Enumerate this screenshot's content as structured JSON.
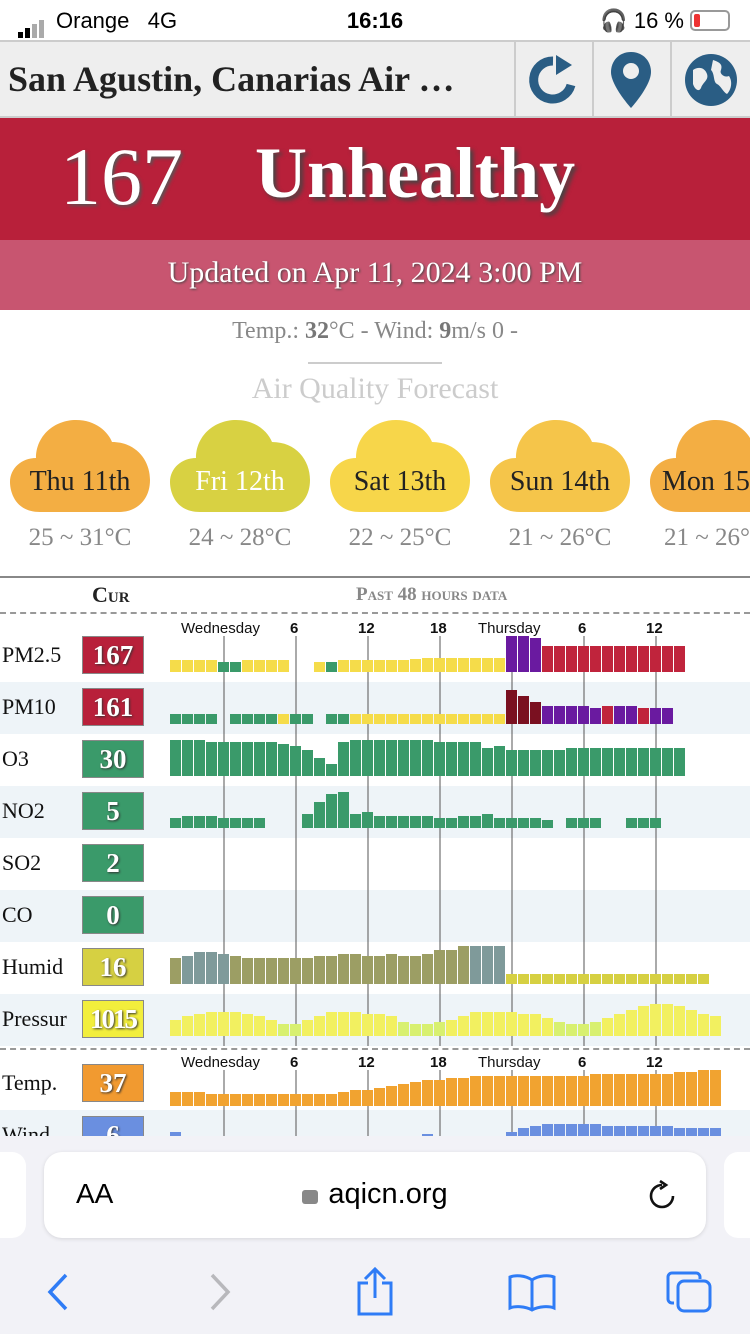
{
  "status_bar": {
    "carrier": "Orange",
    "network": "4G",
    "time": "16:16",
    "battery": "16 %"
  },
  "header": {
    "title": "San Agustin, Canarias Air …",
    "icons": [
      "refresh-icon",
      "location-pin-icon",
      "globe-icon"
    ]
  },
  "aqi": {
    "value": "167",
    "level": "Unhealthy",
    "updated": "Updated on Apr 11, 2024 3:00 PM",
    "color": "#b8203a"
  },
  "weather": {
    "temp_label": "Temp.:",
    "temp_value": "32",
    "temp_unit": "°C",
    "sep": " - ",
    "wind_label": "Wind:",
    "wind_value": "9",
    "wind_unit": "m/s",
    "wind_dir": "0 -"
  },
  "forecast": {
    "title": "Air Quality Forecast",
    "days": [
      {
        "day": "Thu 11th",
        "range": "25 ~ 31°C",
        "color": "#f3ae43"
      },
      {
        "day": "Fri 12th",
        "range": "24 ~ 28°C",
        "color": "#d8d142"
      },
      {
        "day": "Sat 13th",
        "range": "22 ~ 25°C",
        "color": "#f7d64a"
      },
      {
        "day": "Sun 14th",
        "range": "21 ~ 26°C",
        "color": "#f5c54a"
      },
      {
        "day": "Mon 15th",
        "range": "21 ~ 26°C",
        "color": "#f3ae43"
      }
    ]
  },
  "table": {
    "cur_header": "Cur",
    "past_header": "Past 48 hours data",
    "tick_labels": [
      "Wednesday",
      "6",
      "12",
      "18",
      "Thursday",
      "6",
      "12"
    ],
    "rows": [
      {
        "label": "PM2.5",
        "value": "167",
        "color": "#b8203a"
      },
      {
        "label": "PM10",
        "value": "161",
        "color": "#b8203a"
      },
      {
        "label": "O3",
        "value": "30",
        "color": "#3a9a6a"
      },
      {
        "label": "NO2",
        "value": "5",
        "color": "#3a9a6a"
      },
      {
        "label": "SO2",
        "value": "2",
        "color": "#3a9a6a"
      },
      {
        "label": "CO",
        "value": "0",
        "color": "#3a9a6a"
      },
      {
        "label": "Humid",
        "value": "16",
        "color": "#d6d042"
      },
      {
        "label": "Pressur",
        "value": "1015",
        "color": "#f2ee3c"
      },
      {
        "label": "Temp.",
        "value": "37",
        "color": "#f19a30"
      },
      {
        "label": "Wind",
        "value": "6",
        "color": "#6a8fe0"
      }
    ]
  },
  "browser": {
    "aa": "AA",
    "url": "aqicn.org"
  }
}
